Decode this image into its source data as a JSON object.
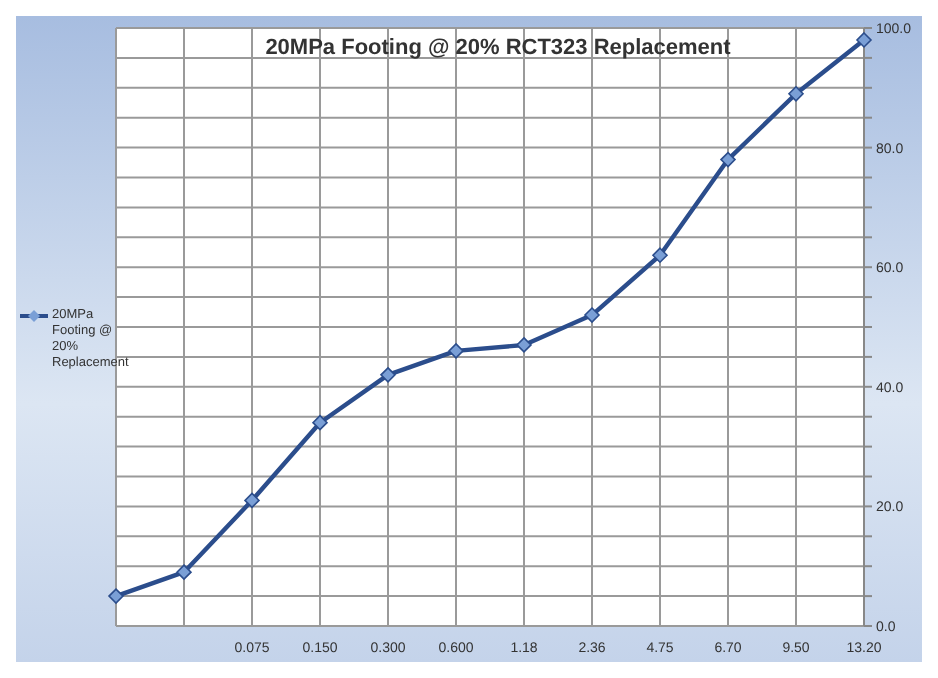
{
  "chart_data": {
    "type": "line",
    "title": "20MPa Footing @ 20% RCT323 Replacement",
    "categories": [
      null,
      null,
      "0.075",
      "0.150",
      "0.300",
      "0.600",
      "1.18",
      "2.36",
      "4.75",
      "6.70",
      "9.50",
      "13.20"
    ],
    "series": [
      {
        "name": "20MPa Footing @ 20% Replacement",
        "color": "#2b4d8c",
        "values": [
          5,
          9,
          21,
          34,
          42,
          46,
          47,
          52,
          62,
          78,
          89,
          98
        ]
      }
    ],
    "ylim": [
      0,
      100
    ],
    "yticks": [
      {
        "value": 0,
        "label": "0.0"
      },
      {
        "value": 5,
        "label": null
      },
      {
        "value": 10,
        "label": null
      },
      {
        "value": 15,
        "label": null
      },
      {
        "value": 20,
        "label": "20.0"
      },
      {
        "value": 25,
        "label": null
      },
      {
        "value": 30,
        "label": null
      },
      {
        "value": 35,
        "label": null
      },
      {
        "value": 40,
        "label": "40.0"
      },
      {
        "value": 45,
        "label": null
      },
      {
        "value": 50,
        "label": null
      },
      {
        "value": 55,
        "label": null
      },
      {
        "value": 60,
        "label": "60.0"
      },
      {
        "value": 65,
        "label": null
      },
      {
        "value": 70,
        "label": null
      },
      {
        "value": 75,
        "label": null
      },
      {
        "value": 80,
        "label": "80.0"
      },
      {
        "value": 85,
        "label": null
      },
      {
        "value": 90,
        "label": null
      },
      {
        "value": 95,
        "label": null
      },
      {
        "value": 100,
        "label": "100.0"
      }
    ],
    "grid": true,
    "legend": "left",
    "marker": "diamond",
    "line_style": "solid"
  }
}
